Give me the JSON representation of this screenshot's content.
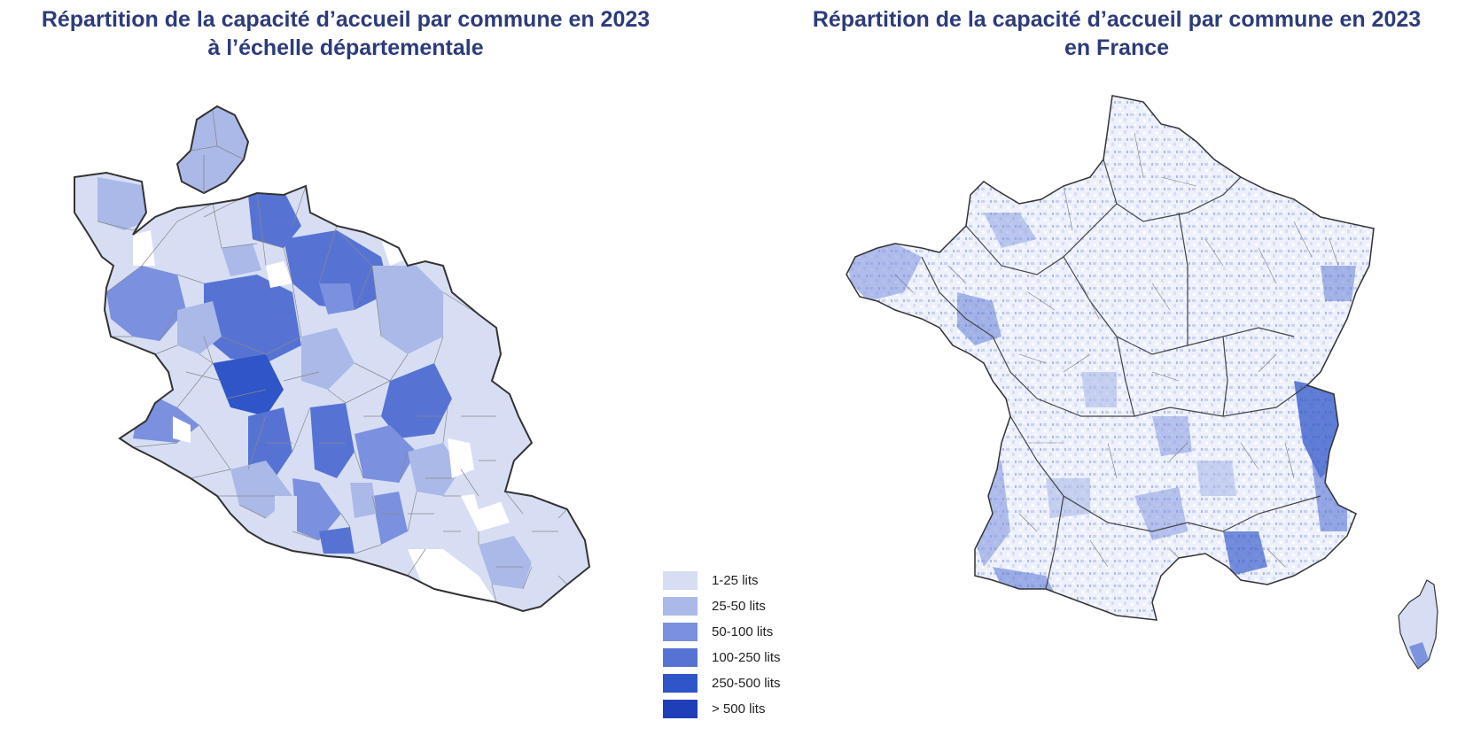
{
  "titles": {
    "left": {
      "line1": "Répartition de la capacité d’accueil par commune en 2023",
      "line2": "à l’échelle départementale"
    },
    "right": {
      "line1": "Répartition de la capacité d’accueil par commune en 2023",
      "line2": "en France"
    }
  },
  "legend": {
    "items": [
      {
        "label": "1-25 lits",
        "color": "#d7def4"
      },
      {
        "label": "25-50 lits",
        "color": "#aab9e8"
      },
      {
        "label": "50-100 lits",
        "color": "#7b90de"
      },
      {
        "label": "100-250 lits",
        "color": "#5673d4"
      },
      {
        "label": "250-500 lits",
        "color": "#2f55c8"
      },
      {
        "label": "> 500 lits",
        "color": "#1f3fb8"
      }
    ]
  },
  "colors": {
    "title": "#2e3b7a",
    "border": "#333333",
    "commune_border": "#888888"
  }
}
